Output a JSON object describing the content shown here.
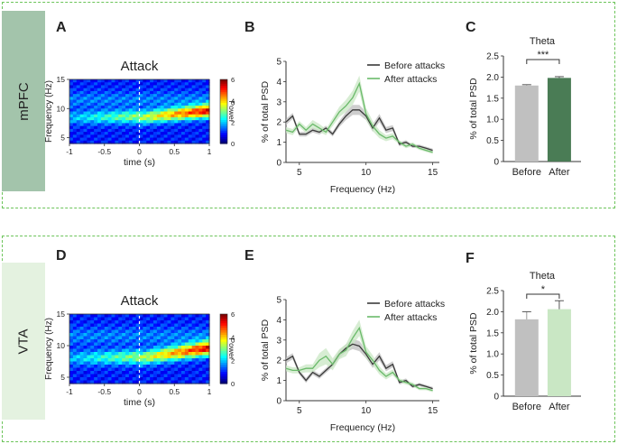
{
  "rows": [
    {
      "region": "mPFC",
      "tab_color": "#a3c4ab",
      "heatmap": {
        "letter": "A",
        "title": "Attack",
        "xlabel": "time (s)",
        "ylabel": "Frequency (Hz)",
        "xticks": [
          "-1",
          "-0.5",
          "0",
          "0.5",
          "1"
        ],
        "yticks": [
          "15",
          "10",
          "5"
        ],
        "colorbar_label": "Power",
        "colorbar_ticks": [
          "6",
          "4",
          "2",
          "0"
        ],
        "chart_data": {
          "type": "heatmap",
          "x_range": [
            -1,
            1
          ],
          "y_range": [
            4,
            15
          ],
          "z_range": [
            0,
            6
          ],
          "event_line_x": 0,
          "band_centers_hz": [
            8.4,
            9.6
          ],
          "description_note": "high-power band near 8-10 Hz shifting upward after attack onset"
        }
      },
      "psd": {
        "letter": "B",
        "xlabel": "Frequency (Hz)",
        "ylabel": "% of total PSD",
        "xticks": [
          "5",
          "10",
          "15"
        ],
        "yticks": [
          "0",
          "1",
          "2",
          "3",
          "4",
          "5"
        ],
        "chart_data": {
          "type": "line",
          "xlim": [
            4,
            15.5
          ],
          "ylim": [
            0,
            5
          ],
          "x": [
            4,
            4.5,
            5,
            5.5,
            6,
            6.5,
            7,
            7.5,
            8,
            8.5,
            9,
            9.5,
            10,
            10.5,
            11,
            11.5,
            12,
            12.5,
            13,
            13.5,
            14,
            14.5,
            15
          ],
          "series": [
            {
              "name": "Before attacks",
              "color": "#3a3a3a",
              "band_color": "#bdbdbd",
              "values": [
                2.0,
                2.3,
                1.4,
                1.4,
                1.6,
                1.5,
                1.7,
                1.4,
                1.9,
                2.3,
                2.6,
                2.6,
                2.3,
                1.7,
                2.2,
                1.6,
                1.7,
                0.9,
                1.0,
                0.8,
                0.8,
                0.7,
                0.6
              ],
              "sem": [
                0.15,
                0.15,
                0.12,
                0.12,
                0.12,
                0.12,
                0.12,
                0.12,
                0.15,
                0.2,
                0.25,
                0.25,
                0.2,
                0.18,
                0.2,
                0.15,
                0.15,
                0.1,
                0.1,
                0.08,
                0.08,
                0.08,
                0.08
              ]
            },
            {
              "name": "After attacks",
              "color": "#6aba6a",
              "band_color": "#c9e7c4",
              "values": [
                1.6,
                1.5,
                1.9,
                1.6,
                1.9,
                1.7,
                1.5,
                2.0,
                2.5,
                2.8,
                3.2,
                3.9,
                2.4,
                1.8,
                1.4,
                1.2,
                1.3,
                1.0,
                0.8,
                0.9,
                0.7,
                0.6,
                0.5
              ],
              "sem": [
                0.15,
                0.15,
                0.15,
                0.15,
                0.2,
                0.2,
                0.15,
                0.2,
                0.25,
                0.3,
                0.35,
                0.4,
                0.3,
                0.25,
                0.2,
                0.15,
                0.15,
                0.1,
                0.1,
                0.1,
                0.08,
                0.08,
                0.08
              ]
            }
          ]
        }
      },
      "bars": {
        "letter": "C",
        "chart_data": {
          "type": "bar",
          "title": "Theta",
          "ylabel": "% of total PSD",
          "categories": [
            "Before",
            "After"
          ],
          "values": [
            1.8,
            1.98
          ],
          "errors": [
            0.02,
            0.03
          ],
          "colors": [
            "#c0c0c0",
            "#4a7c55"
          ],
          "ylim": [
            0,
            2.5
          ],
          "yticks": [
            "0",
            "0.5",
            "1.0",
            "1.5",
            "2.0",
            "2.5"
          ],
          "significance": "***"
        }
      }
    },
    {
      "region": "VTA",
      "tab_color": "#e4f2e0",
      "heatmap": {
        "letter": "D",
        "title": "Attack",
        "xlabel": "time (s)",
        "ylabel": "Frequency (Hz)",
        "xticks": [
          "-1",
          "-0.5",
          "0",
          "0.5",
          "1"
        ],
        "yticks": [
          "15",
          "10",
          "5"
        ],
        "colorbar_label": "Power",
        "colorbar_ticks": [
          "6",
          "4",
          "2",
          "0"
        ],
        "chart_data": {
          "type": "heatmap",
          "x_range": [
            -1,
            1
          ],
          "y_range": [
            4,
            15
          ],
          "z_range": [
            0,
            6
          ],
          "event_line_x": 0,
          "band_centers_hz": [
            8.0,
            9.6
          ],
          "description_note": "high-power band near 8-10 Hz strengthening after attack onset"
        }
      },
      "psd": {
        "letter": "E",
        "xlabel": "Frequency (Hz)",
        "ylabel": "% of total PSD",
        "xticks": [
          "5",
          "10",
          "15"
        ],
        "yticks": [
          "0",
          "1",
          "2",
          "3",
          "4",
          "5"
        ],
        "chart_data": {
          "type": "line",
          "xlim": [
            4,
            15.5
          ],
          "ylim": [
            0,
            5
          ],
          "x": [
            4,
            4.5,
            5,
            5.5,
            6,
            6.5,
            7,
            7.5,
            8,
            8.5,
            9,
            9.5,
            10,
            10.5,
            11,
            11.5,
            12,
            12.5,
            13,
            13.5,
            14,
            14.5,
            15
          ],
          "series": [
            {
              "name": "Before attacks",
              "color": "#3a3a3a",
              "band_color": "#bdbdbd",
              "values": [
                2.0,
                2.2,
                1.4,
                1.0,
                1.4,
                1.2,
                1.5,
                1.8,
                2.3,
                2.6,
                2.8,
                2.7,
                2.3,
                1.8,
                2.2,
                1.6,
                1.8,
                0.9,
                1.0,
                0.7,
                0.8,
                0.7,
                0.6
              ],
              "sem": [
                0.15,
                0.15,
                0.12,
                0.12,
                0.12,
                0.12,
                0.12,
                0.15,
                0.2,
                0.2,
                0.25,
                0.25,
                0.2,
                0.18,
                0.2,
                0.15,
                0.15,
                0.1,
                0.1,
                0.08,
                0.08,
                0.08,
                0.08
              ]
            },
            {
              "name": "After attacks",
              "color": "#6aba6a",
              "band_color": "#c9e7c4",
              "values": [
                1.6,
                1.5,
                1.5,
                1.6,
                1.6,
                2.0,
                2.2,
                1.8,
                2.3,
                2.5,
                3.1,
                3.6,
                2.4,
                2.0,
                1.5,
                1.2,
                1.4,
                1.0,
                0.9,
                0.8,
                0.6,
                0.6,
                0.5
              ],
              "sem": [
                0.15,
                0.15,
                0.15,
                0.2,
                0.2,
                0.35,
                0.4,
                0.3,
                0.25,
                0.3,
                0.35,
                0.4,
                0.3,
                0.25,
                0.2,
                0.15,
                0.15,
                0.1,
                0.1,
                0.1,
                0.08,
                0.08,
                0.08
              ]
            }
          ]
        }
      },
      "bars": {
        "letter": "F",
        "chart_data": {
          "type": "bar",
          "title": "Theta",
          "ylabel": "% of total PSD",
          "categories": [
            "Before",
            "After"
          ],
          "values": [
            1.82,
            2.06
          ],
          "errors": [
            0.18,
            0.2
          ],
          "colors": [
            "#c0c0c0",
            "#c9e7c4"
          ],
          "ylim": [
            0,
            2.5
          ],
          "yticks": [
            "0",
            "0.5",
            "1.0",
            "1.5",
            "2.0",
            "2.5"
          ],
          "significance": "*"
        }
      }
    }
  ]
}
